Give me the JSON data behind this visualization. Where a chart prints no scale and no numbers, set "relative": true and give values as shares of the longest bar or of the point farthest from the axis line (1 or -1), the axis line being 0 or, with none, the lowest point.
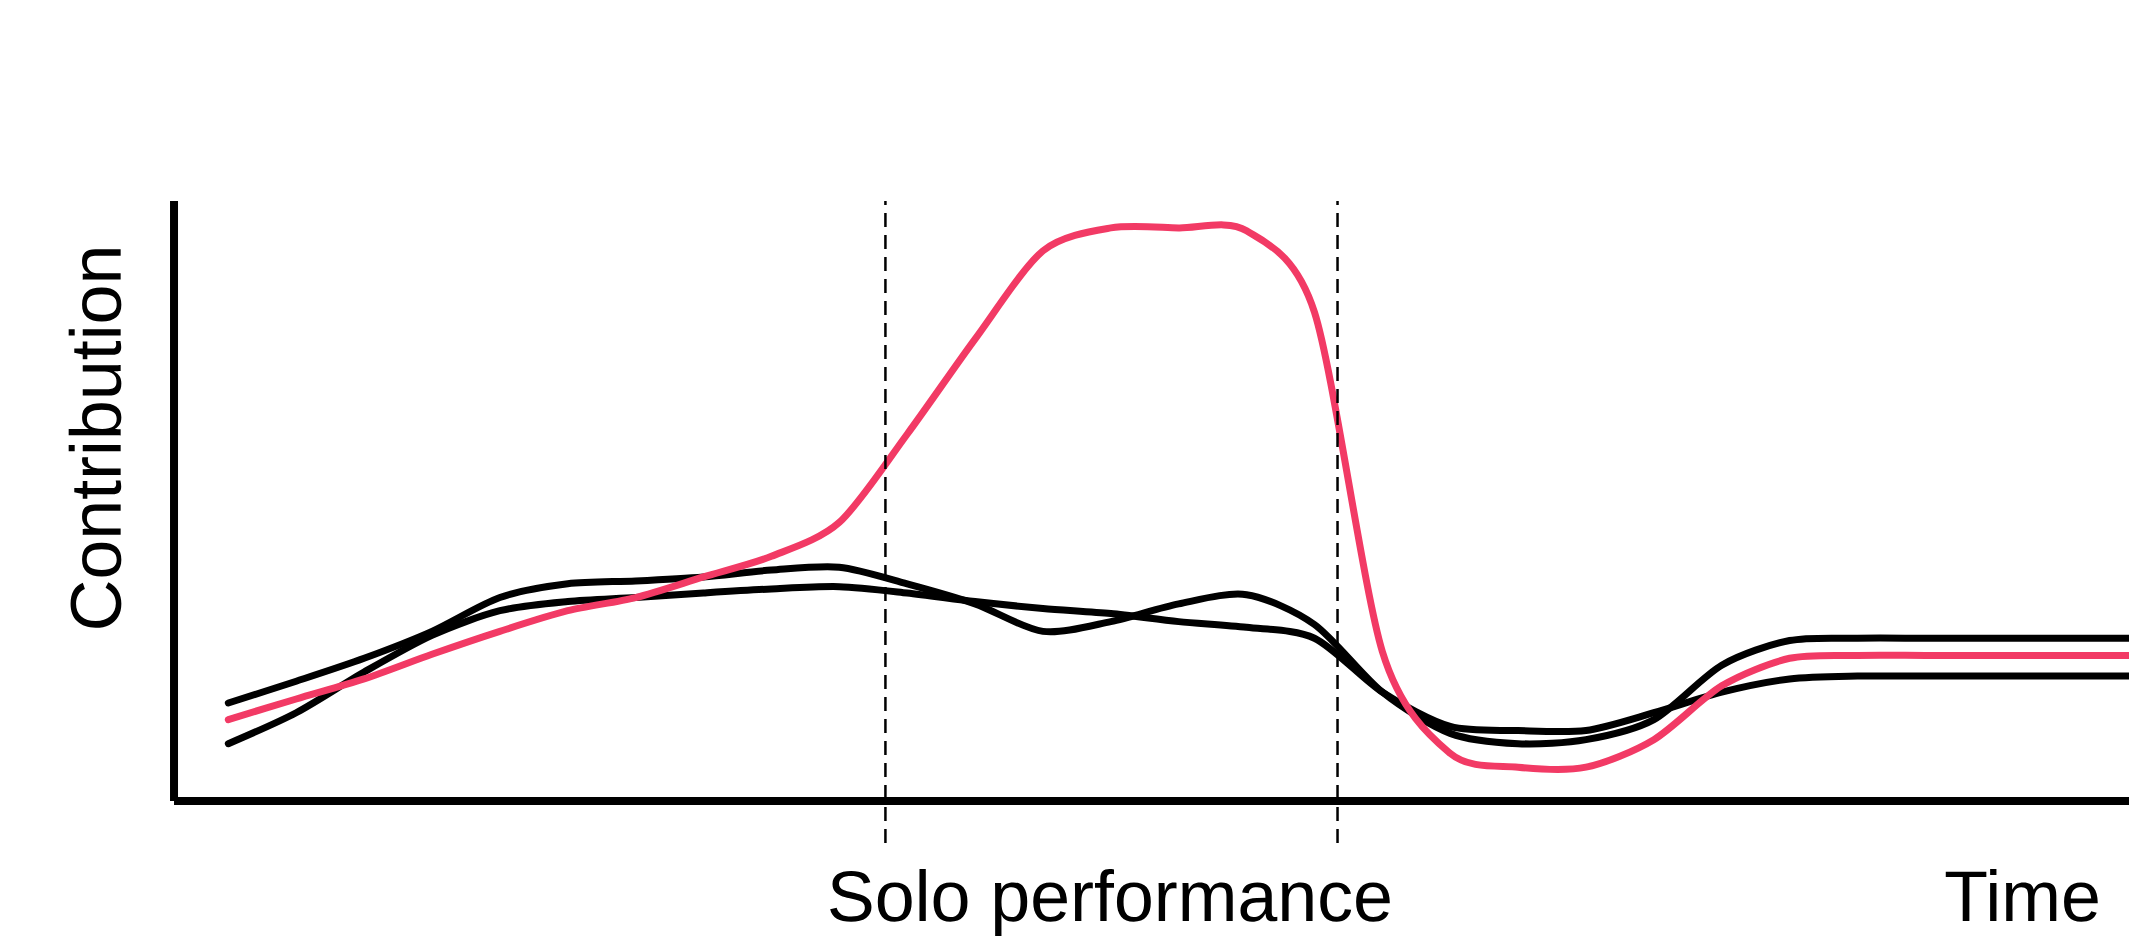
{
  "chart_data": {
    "type": "line",
    "relative": true,
    "ylabel": "Contribution",
    "xlabel": "Time",
    "annotations": [
      "Solo performance"
    ],
    "categories": [
      null,
      null,
      null,
      null,
      null,
      null,
      null,
      null,
      null,
      null,
      null,
      null,
      null,
      null,
      null,
      null,
      null,
      null,
      null,
      null,
      null,
      null,
      null,
      null,
      null,
      null,
      null,
      null,
      null
    ],
    "series": [
      {
        "color": "#000000",
        "values": [
          0.171,
          0.209,
          0.249,
          0.296,
          0.355,
          0.379,
          0.384,
          0.391,
          0.403,
          0.408,
          0.379,
          0.344,
          0.296,
          0.313,
          0.344,
          0.36,
          0.308,
          0.19,
          0.118,
          0.1,
          0.107,
          0.142,
          0.237,
          0.28,
          0.284,
          0.284,
          0.284,
          0.284,
          0.284
        ]
      },
      {
        "color": "#000000",
        "values": [
          0.1,
          0.154,
          0.225,
          0.289,
          0.332,
          0.348,
          0.355,
          0.363,
          0.37,
          0.374,
          0.363,
          0.348,
          0.336,
          0.327,
          0.313,
          0.303,
          0.284,
          0.19,
          0.13,
          0.123,
          0.123,
          0.154,
          0.19,
          0.213,
          0.218,
          0.218,
          0.218,
          0.218,
          0.218
        ]
      },
      {
        "color": "#f23a65",
        "values": [
          0.142,
          0.178,
          0.213,
          0.256,
          0.296,
          0.332,
          0.355,
          0.391,
          0.427,
          0.486,
          0.64,
          0.806,
          0.96,
          1,
          1,
          0.995,
          0.853,
          0.261,
          0.083,
          0.059,
          0.059,
          0.107,
          0.201,
          0.249,
          0.254,
          0.254,
          0.254,
          0.254,
          0.254
        ]
      }
    ],
    "marker": "none",
    "line_style": "solid"
  }
}
